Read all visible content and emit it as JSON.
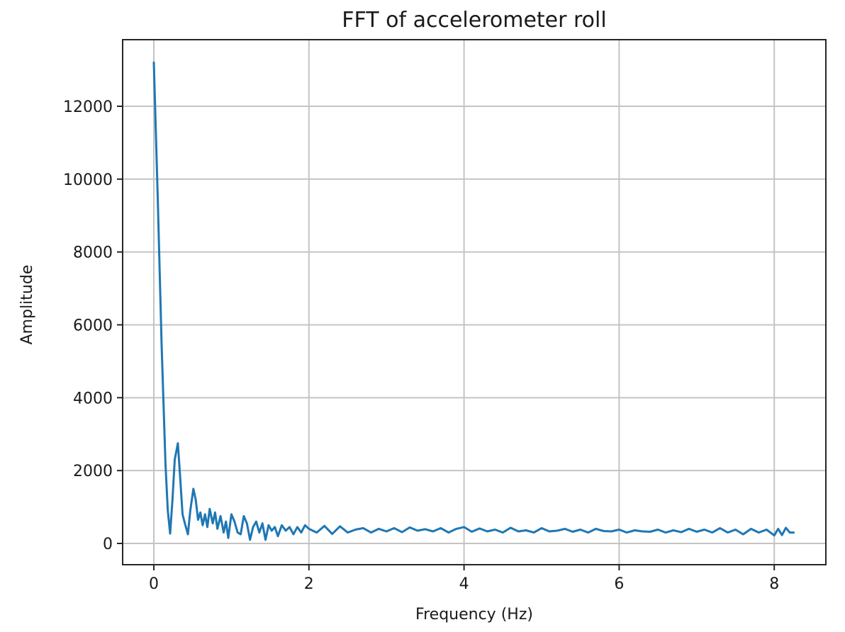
{
  "chart_data": {
    "type": "line",
    "title": "FFT of accelerometer roll",
    "xlabel": "Frequency (Hz)",
    "ylabel": "Amplitude",
    "xlim": [
      -0.4,
      8.7
    ],
    "ylim": [
      -550,
      14000
    ],
    "xticks": [
      0,
      2,
      4,
      6,
      8
    ],
    "yticks": [
      0,
      2000,
      4000,
      6000,
      8000,
      10000,
      12000
    ],
    "grid": true,
    "legend": null,
    "series": [
      {
        "name": "FFT amplitude",
        "color": "#1f77b4",
        "x": [
          0.0,
          0.05,
          0.1,
          0.15,
          0.18,
          0.21,
          0.24,
          0.27,
          0.31,
          0.34,
          0.37,
          0.4,
          0.44,
          0.47,
          0.51,
          0.54,
          0.57,
          0.6,
          0.63,
          0.66,
          0.69,
          0.72,
          0.76,
          0.79,
          0.82,
          0.86,
          0.9,
          0.93,
          0.96,
          1.0,
          1.04,
          1.08,
          1.12,
          1.16,
          1.2,
          1.24,
          1.28,
          1.32,
          1.36,
          1.4,
          1.44,
          1.48,
          1.52,
          1.56,
          1.6,
          1.65,
          1.7,
          1.75,
          1.8,
          1.85,
          1.9,
          1.95,
          2.0,
          2.1,
          2.2,
          2.3,
          2.4,
          2.5,
          2.6,
          2.7,
          2.8,
          2.9,
          3.0,
          3.1,
          3.2,
          3.3,
          3.4,
          3.5,
          3.6,
          3.7,
          3.8,
          3.9,
          4.0,
          4.1,
          4.2,
          4.3,
          4.4,
          4.5,
          4.6,
          4.7,
          4.8,
          4.9,
          5.0,
          5.1,
          5.2,
          5.3,
          5.4,
          5.5,
          5.6,
          5.7,
          5.8,
          5.9,
          6.0,
          6.1,
          6.2,
          6.3,
          6.4,
          6.5,
          6.6,
          6.7,
          6.8,
          6.9,
          7.0,
          7.1,
          7.2,
          7.3,
          7.4,
          7.5,
          7.6,
          7.7,
          7.8,
          7.9,
          8.0,
          8.05,
          8.1,
          8.15,
          8.2,
          8.25
        ],
        "y": [
          13200,
          9500,
          5500,
          2200,
          900,
          270,
          1200,
          2300,
          2750,
          1800,
          800,
          550,
          250,
          900,
          1500,
          1200,
          650,
          850,
          500,
          800,
          450,
          950,
          550,
          850,
          400,
          750,
          300,
          600,
          150,
          800,
          600,
          300,
          250,
          750,
          550,
          100,
          450,
          600,
          300,
          550,
          100,
          500,
          350,
          450,
          200,
          500,
          350,
          450,
          250,
          450,
          300,
          500,
          400,
          300,
          480,
          260,
          470,
          300,
          380,
          420,
          300,
          400,
          330,
          420,
          310,
          440,
          350,
          390,
          330,
          420,
          300,
          400,
          450,
          320,
          410,
          330,
          380,
          300,
          430,
          330,
          360,
          300,
          420,
          330,
          350,
          400,
          320,
          380,
          300,
          400,
          340,
          330,
          380,
          300,
          360,
          330,
          320,
          380,
          300,
          360,
          310,
          400,
          320,
          380,
          300,
          420,
          300,
          380,
          250,
          400,
          300,
          380,
          220,
          400,
          230,
          430,
          300,
          300
        ]
      }
    ]
  }
}
